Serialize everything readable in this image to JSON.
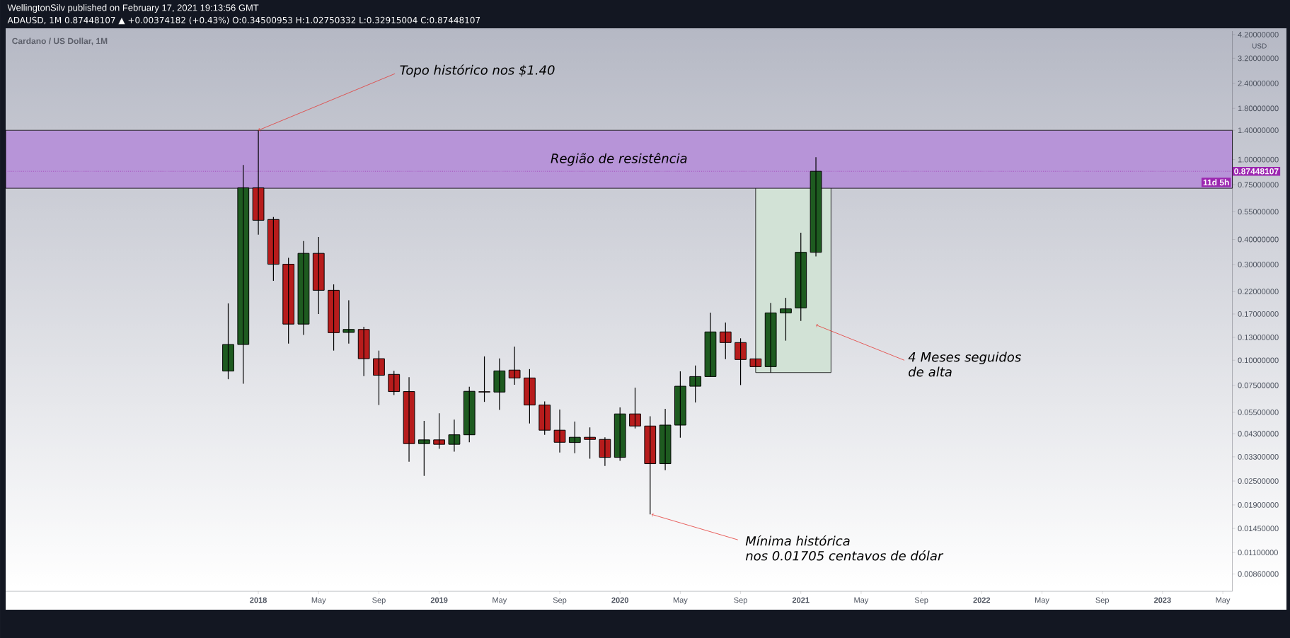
{
  "chart_data": {
    "type": "candlestick",
    "title": "Cardano / US Dollar, 1M",
    "ylabel": "USD",
    "log": "y",
    "x": [
      "2017-11",
      "2017-12",
      "2018-01",
      "2018-02",
      "2018-03",
      "2018-04",
      "2018-05",
      "2018-06",
      "2018-07",
      "2018-08",
      "2018-09",
      "2018-10",
      "2018-11",
      "2018-12",
      "2019-01",
      "2019-02",
      "2019-03",
      "2019-04",
      "2019-05",
      "2019-06",
      "2019-07",
      "2019-08",
      "2019-09",
      "2019-10",
      "2019-11",
      "2019-12",
      "2020-01",
      "2020-02",
      "2020-03",
      "2020-04",
      "2020-05",
      "2020-06",
      "2020-07",
      "2020-08",
      "2020-09",
      "2020-10",
      "2020-11",
      "2020-12",
      "2021-01",
      "2021-02"
    ],
    "ohlc": [
      [
        0.0883,
        0.192,
        0.0804,
        0.1198
      ],
      [
        0.1198,
        0.941,
        0.0764,
        0.723
      ],
      [
        0.723,
        1.4,
        0.4225,
        0.4986
      ],
      [
        0.503,
        0.518,
        0.249,
        0.301
      ],
      [
        0.301,
        0.3237,
        0.1211,
        0.1514
      ],
      [
        0.1514,
        0.393,
        0.1336,
        0.341
      ],
      [
        0.341,
        0.4117,
        0.17,
        0.2232
      ],
      [
        0.2232,
        0.2388,
        0.1117,
        0.1372
      ],
      [
        0.1376,
        0.199,
        0.1211,
        0.1424
      ],
      [
        0.1424,
        0.1467,
        0.0833,
        0.1018
      ],
      [
        0.1018,
        0.1117,
        0.0598,
        0.0842
      ],
      [
        0.085,
        0.0885,
        0.067,
        0.0698
      ],
      [
        0.0698,
        0.0823,
        0.0312,
        0.0384
      ],
      [
        0.0384,
        0.0499,
        0.0265,
        0.0401
      ],
      [
        0.0401,
        0.0544,
        0.0362,
        0.0381
      ],
      [
        0.0381,
        0.0506,
        0.035,
        0.0425
      ],
      [
        0.0425,
        0.0738,
        0.039,
        0.07
      ],
      [
        0.0697,
        0.1045,
        0.062,
        0.0694
      ],
      [
        0.0694,
        0.102,
        0.0565,
        0.0885
      ],
      [
        0.0893,
        0.117,
        0.0755,
        0.0816
      ],
      [
        0.0816,
        0.0903,
        0.0484,
        0.0598
      ],
      [
        0.0598,
        0.0623,
        0.0425,
        0.0448
      ],
      [
        0.0448,
        0.0568,
        0.0347,
        0.039
      ],
      [
        0.0389,
        0.0495,
        0.0344,
        0.0413
      ],
      [
        0.0413,
        0.0463,
        0.0323,
        0.0403
      ],
      [
        0.0403,
        0.0413,
        0.0297,
        0.0328
      ],
      [
        0.0328,
        0.0582,
        0.0315,
        0.054
      ],
      [
        0.054,
        0.073,
        0.0457,
        0.047
      ],
      [
        0.047,
        0.0526,
        0.01705,
        0.0305
      ],
      [
        0.0305,
        0.0573,
        0.0283,
        0.0475
      ],
      [
        0.0475,
        0.0881,
        0.0411,
        0.0742
      ],
      [
        0.0742,
        0.0941,
        0.0616,
        0.0829
      ],
      [
        0.0829,
        0.1727,
        0.0829,
        0.1384
      ],
      [
        0.1384,
        0.1542,
        0.1013,
        0.1225
      ],
      [
        0.1225,
        0.1286,
        0.0752,
        0.1008
      ],
      [
        0.1016,
        0.1016,
        0.0929,
        0.0929
      ],
      [
        0.0929,
        0.193,
        0.0868,
        0.1722
      ],
      [
        0.1722,
        0.2048,
        0.1252,
        0.1803
      ],
      [
        0.1824,
        0.432,
        0.157,
        0.345
      ],
      [
        0.34500953,
        1.02750332,
        0.32915004,
        0.87448107
      ]
    ],
    "colors": [
      "#1e5b20",
      "#1e5b20",
      "#b71c1c",
      "#b71c1c",
      "#b71c1c",
      "#1e5b20",
      "#b71c1c",
      "#b71c1c",
      "#1e5b20",
      "#b71c1c",
      "#b71c1c",
      "#b71c1c",
      "#b71c1c",
      "#1e5b20",
      "#b71c1c",
      "#1e5b20",
      "#1e5b20",
      "#b71c1c",
      "#1e5b20",
      "#b71c1c",
      "#b71c1c",
      "#b71c1c",
      "#b71c1c",
      "#1e5b20",
      "#b71c1c",
      "#b71c1c",
      "#1e5b20",
      "#b71c1c",
      "#b71c1c",
      "#1e5b20",
      "#1e5b20",
      "#1e5b20",
      "#1e5b20",
      "#b71c1c",
      "#b71c1c",
      "#b71c1c",
      "#1e5b20",
      "#1e5b20",
      "#1e5b20",
      "#1e5b20"
    ],
    "xlim": [
      "2016-08-08",
      "2023-05-20"
    ],
    "xticks": [
      {
        "value": "2018-01",
        "label": "2018"
      },
      {
        "value": "2018-05",
        "label": "May"
      },
      {
        "value": "2018-09",
        "label": "Sep"
      },
      {
        "value": "2019-01",
        "label": "2019"
      },
      {
        "value": "2019-05",
        "label": "May"
      },
      {
        "value": "2019-09",
        "label": "Sep"
      },
      {
        "value": "2020-01",
        "label": "2020"
      },
      {
        "value": "2020-05",
        "label": "May"
      },
      {
        "value": "2020-09",
        "label": "Sep"
      },
      {
        "value": "2021-01",
        "label": "2021"
      },
      {
        "value": "2021-05",
        "label": "May"
      },
      {
        "value": "2021-09",
        "label": "Sep"
      },
      {
        "value": "2022-01",
        "label": "2022"
      },
      {
        "value": "2022-05",
        "label": "May"
      },
      {
        "value": "2022-09",
        "label": "Sep"
      },
      {
        "value": "2023-01",
        "label": "2023"
      },
      {
        "value": "2023-05",
        "label": "May"
      }
    ],
    "ylim": [
      0.00705,
      4.37
    ],
    "yticks": [
      {
        "value": 4.2,
        "label": "4.20000000"
      },
      {
        "value": 3.2,
        "label": "3.20000000"
      },
      {
        "value": 2.4,
        "label": "2.40000000"
      },
      {
        "value": 1.8,
        "label": "1.80000000"
      },
      {
        "value": 1.4,
        "label": "1.40000000"
      },
      {
        "value": 1.0,
        "label": "1.00000000"
      },
      {
        "value": 0.75,
        "label": "0.75000000"
      },
      {
        "value": 0.55,
        "label": "0.55000000"
      },
      {
        "value": 0.4,
        "label": "0.40000000"
      },
      {
        "value": 0.3,
        "label": "0.30000000"
      },
      {
        "value": 0.22,
        "label": "0.22000000"
      },
      {
        "value": 0.17,
        "label": "0.17000000"
      },
      {
        "value": 0.13,
        "label": "0.13000000"
      },
      {
        "value": 0.1,
        "label": "0.10000000"
      },
      {
        "value": 0.075,
        "label": "0.07500000"
      },
      {
        "value": 0.055,
        "label": "0.05500000"
      },
      {
        "value": 0.043,
        "label": "0.04300000"
      },
      {
        "value": 0.033,
        "label": "0.03300000"
      },
      {
        "value": 0.025,
        "label": "0.02500000"
      },
      {
        "value": 0.019,
        "label": "0.01900000"
      },
      {
        "value": 0.0145,
        "label": "0.01450000"
      },
      {
        "value": 0.011,
        "label": "0.01100000"
      },
      {
        "value": 0.0086,
        "label": "0.00860000"
      }
    ],
    "bands": [
      {
        "axis": "x",
        "from": "2020-10",
        "to": "2021-03",
        "color": "#d2e2d6"
      },
      {
        "axis": "y",
        "from": 0.72,
        "to": 1.4,
        "label": "Região de resistência",
        "color": "#b794d8"
      }
    ],
    "ref_lines": [
      {
        "axis": "y",
        "value": 0.87448107,
        "label": "0.87448107",
        "color": "#9c27b0",
        "line_style": "dotted"
      }
    ],
    "annotations": [
      "WellingtonSilv published on February 17, 2021 19:13:56 GMT",
      "ADAUSD, 1M 0.87448107 ▲ +0.00374182 (+0.43%) O:0.34500953 H:1.02750332 L:0.32915004 C:0.87448107",
      {
        "text": "Topo histórico nos $1.40",
        "x": "2018-01",
        "y": 1.4
      },
      "11d 5h",
      {
        "text": "Mínima histórica",
        "x": "2020-03",
        "y": 0.01705
      },
      "nos 0.01705 centavos de dólar",
      {
        "text": "4 Meses seguidos de alta",
        "x": "2021-02",
        "y": 0.15
      }
    ]
  }
}
